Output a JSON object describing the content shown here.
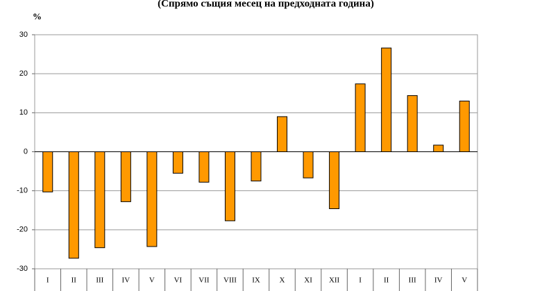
{
  "chart_data": {
    "type": "bar",
    "title": "(Спрямо същия месец на предходната година)",
    "unit_label": "%",
    "categories": [
      "I",
      "II",
      "III",
      "IV",
      "V",
      "VI",
      "VII",
      "VIII",
      "IX",
      "X",
      "XI",
      "XII",
      "I",
      "II",
      "III",
      "IV",
      "V"
    ],
    "values": [
      -10.3,
      -27.3,
      -24.6,
      -12.8,
      -24.3,
      -5.5,
      -7.8,
      -17.7,
      -7.5,
      9.0,
      -6.7,
      -14.6,
      17.4,
      26.6,
      14.4,
      1.7,
      13.0
    ],
    "color": "#ff9900",
    "ylim": [
      -30,
      30
    ],
    "yticks": [
      -30,
      -20,
      -10,
      0,
      10,
      20,
      30
    ],
    "grid": true
  }
}
